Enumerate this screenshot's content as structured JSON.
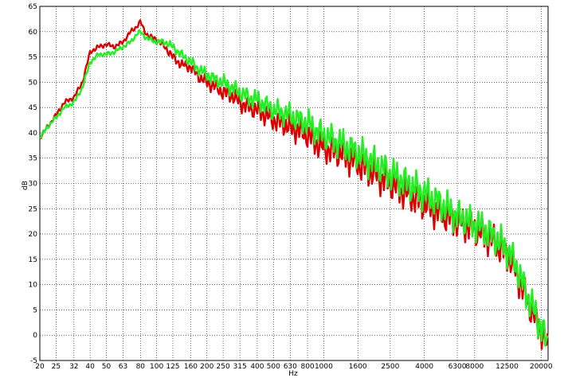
{
  "chart_data": {
    "type": "line",
    "title": "",
    "xlabel": "Hz",
    "ylabel": "dB",
    "x_scale": "log",
    "xlim": [
      20,
      22000
    ],
    "ylim": [
      -5,
      65
    ],
    "grid": true,
    "x_ticks": [
      "20",
      "25",
      "32",
      "40",
      "50",
      "63",
      "80",
      "100",
      "125",
      "160",
      "200",
      "250",
      "315",
      "400",
      "500",
      "630",
      "800",
      "1000",
      "1600",
      "2500",
      "4000",
      "6300",
      "8000",
      "12500",
      "20000"
    ],
    "y_ticks": [
      "-5",
      "0",
      "5",
      "10",
      "15",
      "20",
      "25",
      "30",
      "35",
      "40",
      "45",
      "50",
      "55",
      "60",
      "65"
    ],
    "series": [
      {
        "color": "#dd0000",
        "x": [
          20,
          22,
          25,
          28,
          32,
          36,
          40,
          45,
          50,
          56,
          63,
          70,
          76,
          80,
          85,
          90,
          100,
          112,
          125,
          140,
          160,
          180,
          200,
          225,
          250,
          280,
          315,
          355,
          400,
          450,
          500,
          560,
          630,
          710,
          800,
          900,
          1000,
          1250,
          1600,
          2000,
          2500,
          3150,
          4000,
          5000,
          6300,
          8000,
          10000,
          12500,
          14000,
          16000,
          18000,
          20000,
          22000
        ],
        "y": [
          39,
          41,
          43.5,
          46,
          47,
          50,
          56,
          57,
          57.5,
          57,
          58,
          60,
          61,
          62,
          60,
          59,
          58.5,
          57,
          55,
          53.5,
          53,
          51,
          50,
          49,
          48,
          47.5,
          46,
          45,
          44.5,
          43.5,
          42.5,
          42,
          41,
          40.5,
          39.5,
          38,
          37,
          36,
          34,
          32,
          30,
          28,
          26,
          24,
          22.5,
          21,
          19,
          16,
          13,
          8,
          4,
          1,
          -3
        ]
      },
      {
        "color": "#22ee22",
        "x": [
          20,
          22,
          25,
          28,
          32,
          36,
          40,
          45,
          50,
          56,
          63,
          70,
          76,
          80,
          85,
          90,
          100,
          112,
          125,
          140,
          160,
          180,
          200,
          225,
          250,
          280,
          315,
          355,
          400,
          450,
          500,
          560,
          630,
          710,
          800,
          900,
          1000,
          1250,
          1600,
          2000,
          2500,
          3150,
          4000,
          5000,
          6300,
          8000,
          10000,
          12500,
          14000,
          16000,
          18000,
          20000,
          22000
        ],
        "y": [
          39,
          41,
          43,
          45,
          46,
          49,
          54,
          55.5,
          55.5,
          56,
          57,
          58,
          59.5,
          60,
          59,
          58.5,
          58,
          58,
          57,
          55.5,
          54,
          52.5,
          51.5,
          50.5,
          50,
          49,
          48,
          47,
          46.5,
          45.5,
          44.5,
          44,
          43.5,
          42.5,
          42,
          40.5,
          39.5,
          38,
          36,
          34,
          32,
          30,
          28,
          26,
          23.5,
          22,
          20,
          17,
          14,
          9,
          5,
          1.5,
          -2
        ]
      }
    ]
  }
}
